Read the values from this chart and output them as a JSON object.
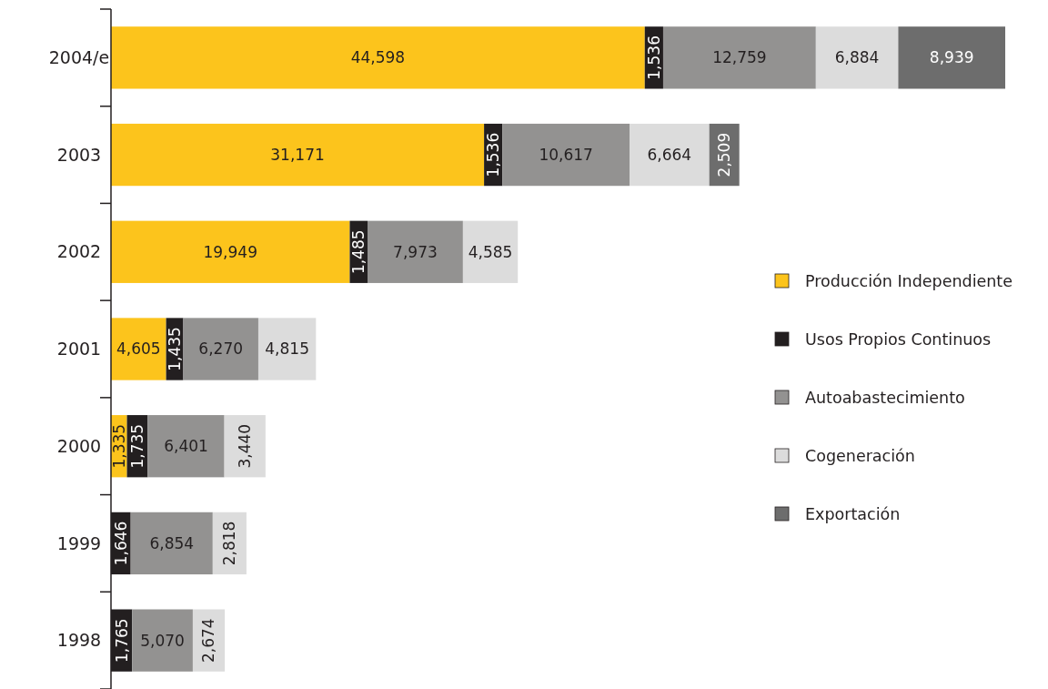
{
  "chart_data": {
    "type": "bar",
    "orientation": "horizontal",
    "stacked": true,
    "legend": "right",
    "categories": [
      "2004/e",
      "2003",
      "2002",
      "2001",
      "2000",
      "1999",
      "1998"
    ],
    "series": [
      {
        "name": "Producción Independiente",
        "color": "#fcc41c",
        "values": [
          44598,
          31171,
          19949,
          4605,
          1335,
          null,
          null
        ],
        "value_labels": [
          "44,598",
          "31,171",
          "19,949",
          "4,605",
          "1,335",
          null,
          null
        ]
      },
      {
        "name": "Usos Propios Continuos",
        "color": "#231f20",
        "values": [
          1536,
          1536,
          1485,
          1435,
          1735,
          1646,
          1765
        ],
        "value_labels": [
          "1,536",
          "1,536",
          "1,485",
          "1,435",
          "1,735",
          "1,646",
          "1,765"
        ]
      },
      {
        "name": "Autoabastecimiento",
        "color": "#939291",
        "values": [
          12759,
          10617,
          7973,
          6270,
          6401,
          6854,
          5070
        ],
        "value_labels": [
          "12,759",
          "10,617",
          "7,973",
          "6,270",
          "6,401",
          "6,854",
          "5,070"
        ]
      },
      {
        "name": "Cogeneración",
        "color": "#dcdcdc",
        "values": [
          6884,
          6664,
          4585,
          4815,
          3440,
          2818,
          2674
        ],
        "value_labels": [
          "6,884",
          "6,664",
          "4,585",
          "4,815",
          "3,440",
          "2,818",
          "2,674"
        ]
      },
      {
        "name": "Exportación",
        "color": "#6d6d6d",
        "values": [
          8939,
          2509,
          null,
          null,
          null,
          null,
          null
        ],
        "value_labels": [
          "8,939",
          "2,509",
          null,
          null,
          null,
          null,
          null
        ]
      }
    ]
  }
}
